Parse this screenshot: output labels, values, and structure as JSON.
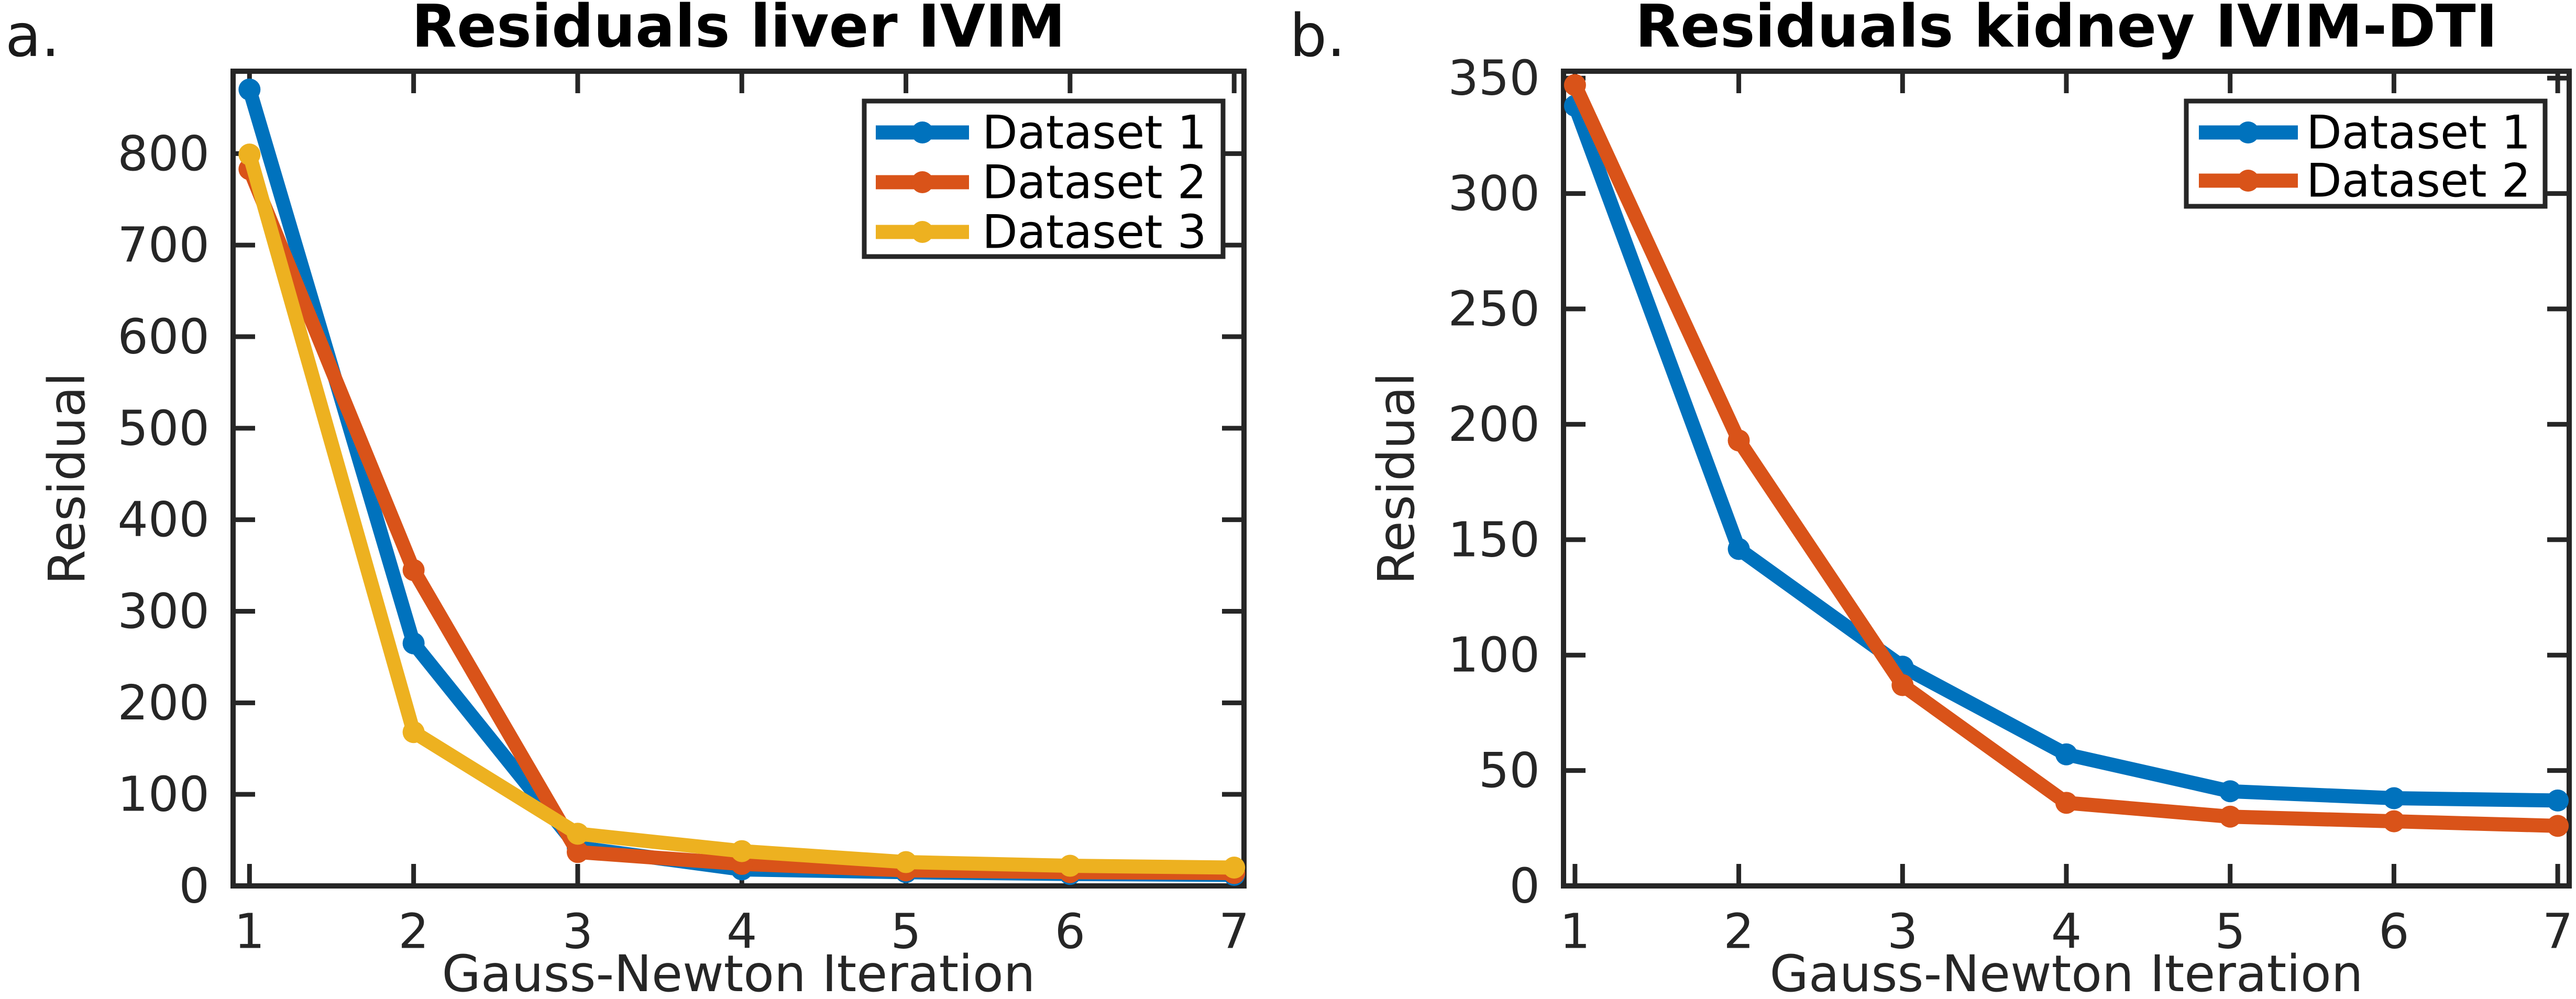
{
  "figure": {
    "background": "#ffffff",
    "axes_color": "#262626",
    "text_color": "#000000"
  },
  "chart_data": [
    {
      "type": "line",
      "panel_label": "a.",
      "title": "Residuals liver IVIM",
      "xlabel": "Gauss-Newton Iteration",
      "ylabel": "Residual",
      "x": [
        1,
        2,
        3,
        4,
        5,
        6,
        7
      ],
      "series": [
        {
          "name": "Dataset 1",
          "color": "#0072BD",
          "values": [
            870,
            265,
            42,
            18,
            15,
            13,
            12
          ]
        },
        {
          "name": "Dataset 2",
          "color": "#D95319",
          "values": [
            783,
            345,
            37,
            24,
            17,
            15,
            14
          ]
        },
        {
          "name": "Dataset 3",
          "color": "#EDB120",
          "values": [
            799,
            168,
            57,
            38,
            26,
            22,
            20
          ]
        }
      ],
      "xlim": [
        0.9,
        7.06
      ],
      "ylim": [
        0,
        890
      ],
      "xticks": [
        1,
        2,
        3,
        4,
        5,
        6,
        7
      ],
      "yticks": [
        0,
        100,
        200,
        300,
        400,
        500,
        600,
        700,
        800
      ],
      "grid": false,
      "legend_position": "top-right"
    },
    {
      "type": "line",
      "panel_label": "b.",
      "title": "Residuals kidney IVIM-DTI",
      "xlabel": "Gauss-Newton Iteration",
      "ylabel": "Residual",
      "x": [
        1,
        2,
        3,
        4,
        5,
        6,
        7
      ],
      "series": [
        {
          "name": "Dataset 1",
          "color": "#0072BD",
          "values": [
            338,
            146,
            95,
            57,
            41,
            38,
            37
          ]
        },
        {
          "name": "Dataset 2",
          "color": "#D95319",
          "values": [
            347,
            193,
            87,
            36,
            30,
            28,
            26
          ]
        }
      ],
      "xlim": [
        0.93,
        7.07
      ],
      "ylim": [
        0,
        353
      ],
      "xticks": [
        1,
        2,
        3,
        4,
        5,
        6,
        7
      ],
      "yticks": [
        0,
        50,
        100,
        150,
        200,
        250,
        300,
        350
      ],
      "grid": false,
      "legend_position": "top-right"
    }
  ]
}
